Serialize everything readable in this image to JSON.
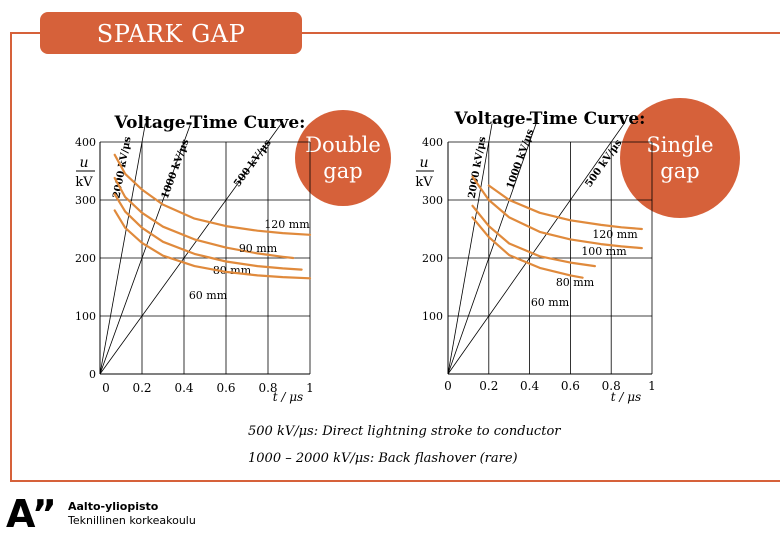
{
  "slide": {
    "title": "SPARK GAP",
    "caption_line1": "500 kV/μs: Direct lightning stroke to conductor",
    "caption_line2": "1000 – 2000 kV/μs: Back flashover (rare)",
    "colors": {
      "accent": "#d6613a",
      "curve": "#e08a3c",
      "grid": "#000000"
    }
  },
  "logo": {
    "mark": "A”",
    "name": "Aalto-yliopisto",
    "subtitle": "Teknillinen korkeakoulu"
  },
  "chart_data": [
    {
      "type": "line",
      "title": "Voltage-Time Curve:",
      "badge": "Double gap",
      "ylabel_symbol": "u",
      "ylabel_unit": "kV",
      "xlabel": "t / μs",
      "x_ticks": [
        "0",
        "0.2",
        "0.4",
        "0.6",
        "0.8",
        "1"
      ],
      "y_ticks": [
        "0",
        "100",
        "200",
        "300",
        "400"
      ],
      "xlim": [
        0,
        1
      ],
      "ylim": [
        0,
        400
      ],
      "grid": true,
      "rate_lines": [
        {
          "label": "2000 kV/μs",
          "slope": 2000
        },
        {
          "label": "1000 kV/μs",
          "slope": 1000
        },
        {
          "label": "500 kV/μs",
          "slope": 500
        }
      ],
      "series": [
        {
          "name": "120 mm",
          "x": [
            0.07,
            0.12,
            0.2,
            0.3,
            0.45,
            0.6,
            0.75,
            0.87,
            1.0
          ],
          "y": [
            378,
            345,
            318,
            292,
            268,
            255,
            247,
            243,
            240
          ]
        },
        {
          "name": "90 mm",
          "x": [
            0.07,
            0.12,
            0.2,
            0.3,
            0.45,
            0.6,
            0.75,
            0.87,
            0.92
          ],
          "y": [
            338,
            305,
            278,
            254,
            232,
            218,
            208,
            202,
            200
          ]
        },
        {
          "name": "80 mm",
          "x": [
            0.07,
            0.12,
            0.2,
            0.3,
            0.45,
            0.6,
            0.75,
            0.87,
            0.96
          ],
          "y": [
            310,
            280,
            252,
            228,
            207,
            194,
            186,
            182,
            180
          ]
        },
        {
          "name": "60 mm",
          "x": [
            0.07,
            0.12,
            0.2,
            0.3,
            0.45,
            0.6,
            0.75,
            0.87,
            1.0
          ],
          "y": [
            282,
            252,
            226,
            204,
            186,
            176,
            170,
            167,
            165
          ]
        }
      ]
    },
    {
      "type": "line",
      "title": "Voltage-Time Curve:",
      "badge": "Single gap",
      "ylabel_symbol": "u",
      "ylabel_unit": "kV",
      "xlabel": "t / μs",
      "x_ticks": [
        "0",
        "0.2",
        "0.4",
        "0.6",
        "0.8",
        "1"
      ],
      "y_ticks": [
        "100",
        "200",
        "300",
        "400"
      ],
      "xlim": [
        0,
        1
      ],
      "ylim": [
        0,
        400
      ],
      "grid": true,
      "rate_lines": [
        {
          "label": "2000 kV/μs",
          "slope": 2000
        },
        {
          "label": "1000 kV/μs",
          "slope": 1000
        },
        {
          "label": "500 kV/μs",
          "slope": 500
        }
      ],
      "series": [
        {
          "name": "120 mm",
          "x": [
            0.2,
            0.3,
            0.45,
            0.6,
            0.75,
            0.85,
            0.95
          ],
          "y": [
            325,
            300,
            278,
            265,
            257,
            253,
            250
          ]
        },
        {
          "name": "100 mm",
          "x": [
            0.12,
            0.2,
            0.3,
            0.45,
            0.6,
            0.75,
            0.85,
            0.95
          ],
          "y": [
            340,
            300,
            270,
            245,
            232,
            224,
            220,
            217
          ]
        },
        {
          "name": "80 mm",
          "x": [
            0.12,
            0.2,
            0.3,
            0.45,
            0.6,
            0.72
          ],
          "y": [
            290,
            255,
            225,
            203,
            192,
            186
          ]
        },
        {
          "name": "60 mm",
          "x": [
            0.12,
            0.2,
            0.3,
            0.45,
            0.6,
            0.66
          ],
          "y": [
            270,
            236,
            205,
            183,
            170,
            166
          ]
        }
      ]
    }
  ]
}
